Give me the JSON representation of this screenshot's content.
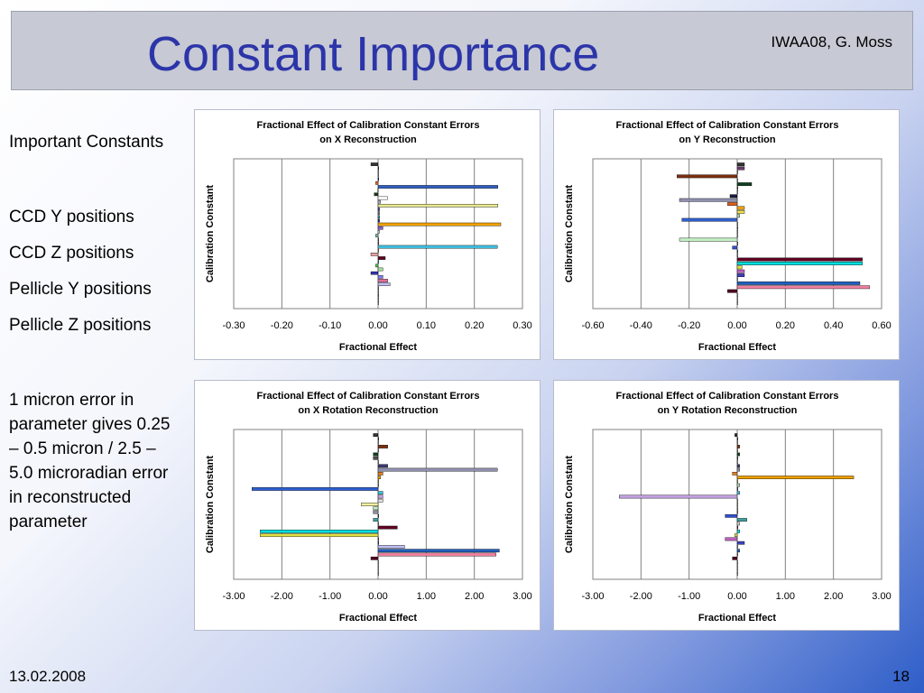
{
  "slide": {
    "title": "Constant Importance",
    "author": "IWAA08,  G. Moss",
    "date": "13.02.2008",
    "page": "18",
    "left_text": [
      "Important Constants",
      "CCD Y positions",
      "CCD Z positions",
      "Pellicle Y positions",
      "Pellicle Z positions",
      "1 micron error in parameter gives 0.25 – 0.5 micron / 2.5 – 5.0 microradian error in reconstructed parameter"
    ]
  },
  "chart_data": [
    {
      "type": "bar",
      "orientation": "horizontal",
      "title": "Fractional Effect of Calibration Constant Errors",
      "subtitle": "on X Reconstruction",
      "xlabel": "Fractional Effect",
      "ylabel": "Calibration Constant",
      "xlim": [
        -0.3,
        0.3
      ],
      "xticks": [
        "-0.30",
        "-0.20",
        "-0.10",
        "0.00",
        "0.10",
        "0.20",
        "0.30"
      ],
      "grid": true,
      "colors": [
        "#333333",
        "#6a3a6e",
        "#e8e0c8",
        "#d8e8f0",
        "#3a3a78",
        "#e07030",
        "#3060c0",
        "#c8d8f0",
        "#1a3a1a",
        "#ffffff",
        "#b0b0d0",
        "#e8e890",
        "#4a4aa8",
        "#808080",
        "#20a0c0",
        "#1a2a90",
        "#f0a000",
        "#9060c0",
        "#d0e0f0",
        "#80c0a0",
        "#a0a0a0",
        "#c02060",
        "#40c0e0",
        "#f0e050",
        "#e8a0a0",
        "#600020",
        "#00e0e0",
        "#50c850",
        "#a0e0a0",
        "#3030b0",
        "#8080ff",
        "#e070a0",
        "#c0c0f0",
        "#e0a0c0",
        "#a0f0a0",
        "#60a0ff",
        "#c0ffc0",
        "#ffffff"
      ],
      "values": [
        -0.015,
        0.0,
        0.0,
        0.0,
        0.0,
        -0.005,
        0.249,
        -0.001,
        -0.008,
        0.02,
        0.005,
        0.249,
        0.003,
        0.003,
        0.003,
        0.003,
        0.255,
        0.01,
        0.003,
        -0.005,
        0.0,
        0.0,
        0.248,
        0.0,
        -0.015,
        0.015,
        0.0,
        -0.005,
        0.01,
        -0.015,
        0.01,
        0.02,
        0.025,
        0.0,
        0.0,
        0.0,
        0.0,
        0.0
      ]
    },
    {
      "type": "bar",
      "orientation": "horizontal",
      "title": "Fractional Effect of Calibration Constant Errors",
      "subtitle": "on Y Reconstruction",
      "xlabel": "Fractional Effect",
      "ylabel": "Calibration Constant",
      "xlim": [
        -0.6,
        0.6
      ],
      "xticks": [
        "-0.60",
        "-0.40",
        "-0.20",
        "0.00",
        "0.20",
        "0.40",
        "0.60"
      ],
      "grid": true,
      "colors": [
        "#333333",
        "#6a3a6e",
        "#e8e0c8",
        "#7a3010",
        "#e8e8e8",
        "#104020",
        "#505050",
        "#ffffff",
        "#1a1a40",
        "#9090b0",
        "#e06020",
        "#f0a000",
        "#f0e050",
        "#b0d8b0",
        "#3060d0",
        "#d0f0d0",
        "#8080a0",
        "#e0e0e0",
        "#f0f0f0",
        "#c0f0c0",
        "#9090a0",
        "#3050d0",
        "#40a0a0",
        "#d0d0d0",
        "#600020",
        "#00e0e0",
        "#e0e040",
        "#c060c0",
        "#4040c0",
        "#e0e0e0",
        "#2060c0",
        "#f080a0",
        "#500020",
        "#ffffff",
        "#ffffff",
        "#ffffff"
      ],
      "values": [
        0.03,
        0.03,
        0.0,
        -0.25,
        0.0,
        0.06,
        0.0,
        0.0,
        -0.03,
        -0.24,
        -0.04,
        0.03,
        0.03,
        0.01,
        -0.23,
        0.0,
        0.0,
        0.0,
        0.0,
        -0.24,
        0.0,
        -0.02,
        0.0,
        0.0,
        0.52,
        0.52,
        0.02,
        0.03,
        0.03,
        0.0,
        0.51,
        0.55,
        -0.04,
        0.0,
        0.0,
        0.0
      ]
    },
    {
      "type": "bar",
      "orientation": "horizontal",
      "title": "Fractional Effect of Calibration Constant Errors",
      "subtitle": "on X Rotation Reconstruction",
      "xlabel": "Fractional Effect",
      "ylabel": "Calibration Constant",
      "xlim": [
        -3.0,
        3.0
      ],
      "xticks": [
        "-3.00",
        "-2.00",
        "-1.00",
        "0.00",
        "1.00",
        "2.00",
        "3.00"
      ],
      "grid": true,
      "colors": [
        "#333333",
        "#6a3a6e",
        "#e8e0c8",
        "#7a3010",
        "#e8e8e8",
        "#104020",
        "#505050",
        "#ffffff",
        "#3a3a70",
        "#9090b0",
        "#e08020",
        "#f0a000",
        "#f0e050",
        "#b0d8b0",
        "#3060d0",
        "#40c0e0",
        "#c0a0e0",
        "#e0e0e0",
        "#f0f0a0",
        "#c0f0c0",
        "#9090a0",
        "#3050d0",
        "#40a0a0",
        "#d0d0d0",
        "#600020",
        "#00e0e0",
        "#e0e040",
        "#c060c0",
        "#4040c0",
        "#c0c0f0",
        "#2060c0",
        "#f080a0",
        "#500020",
        "#ffffff",
        "#ffffff",
        "#ffffff",
        "#ffffff"
      ],
      "values": [
        -0.1,
        0.0,
        0.0,
        0.2,
        0.0,
        -0.1,
        -0.1,
        0.0,
        0.2,
        2.48,
        0.1,
        0.05,
        0.0,
        0.0,
        -2.62,
        0.1,
        0.1,
        0.1,
        -0.35,
        -0.1,
        -0.1,
        0.0,
        -0.1,
        0.0,
        0.4,
        -2.45,
        -2.45,
        0.0,
        0.0,
        0.55,
        2.52,
        2.45,
        -0.15,
        0.0,
        0.0,
        0.0,
        0.0
      ]
    },
    {
      "type": "bar",
      "orientation": "horizontal",
      "title": "Fractional Effect of Calibration Constant Errors",
      "subtitle": "on Y Rotation Reconstruction",
      "xlabel": "Fractional Effect",
      "ylabel": "Calibration Constant",
      "xlim": [
        -3.0,
        3.0
      ],
      "xticks": [
        "-3.00",
        "-2.00",
        "-1.00",
        "0.00",
        "1.00",
        "2.00",
        "3.00"
      ],
      "grid": true,
      "colors": [
        "#333333",
        "#6a3a6e",
        "#e8e0c8",
        "#7a3010",
        "#e8e8e8",
        "#104020",
        "#505050",
        "#ffffff",
        "#3a3a70",
        "#9090b0",
        "#e08020",
        "#f0a000",
        "#f0e050",
        "#b0d8b0",
        "#3060d0",
        "#40c0e0",
        "#c0a0e0",
        "#e0e0e0",
        "#f0f0a0",
        "#c0f0c0",
        "#9090a0",
        "#3050d0",
        "#40a0a0",
        "#d0d0d0",
        "#600020",
        "#00e0e0",
        "#e0e040",
        "#c060c0",
        "#4040c0",
        "#c0c0f0",
        "#2060c0",
        "#f080a0",
        "#500020",
        "#ffffff",
        "#ffffff",
        "#ffffff",
        "#ffffff"
      ],
      "values": [
        -0.05,
        0.0,
        0.0,
        0.05,
        0.0,
        0.05,
        0.0,
        0.0,
        0.05,
        0.05,
        -0.1,
        2.42,
        0.0,
        0.05,
        0.0,
        0.05,
        -2.45,
        0.0,
        0.0,
        0.0,
        0.0,
        -0.25,
        0.2,
        0.05,
        0.0,
        0.05,
        -0.05,
        -0.25,
        0.15,
        0.0,
        0.05,
        0.0,
        -0.1,
        0.0,
        0.0,
        0.0,
        0.0
      ]
    }
  ]
}
